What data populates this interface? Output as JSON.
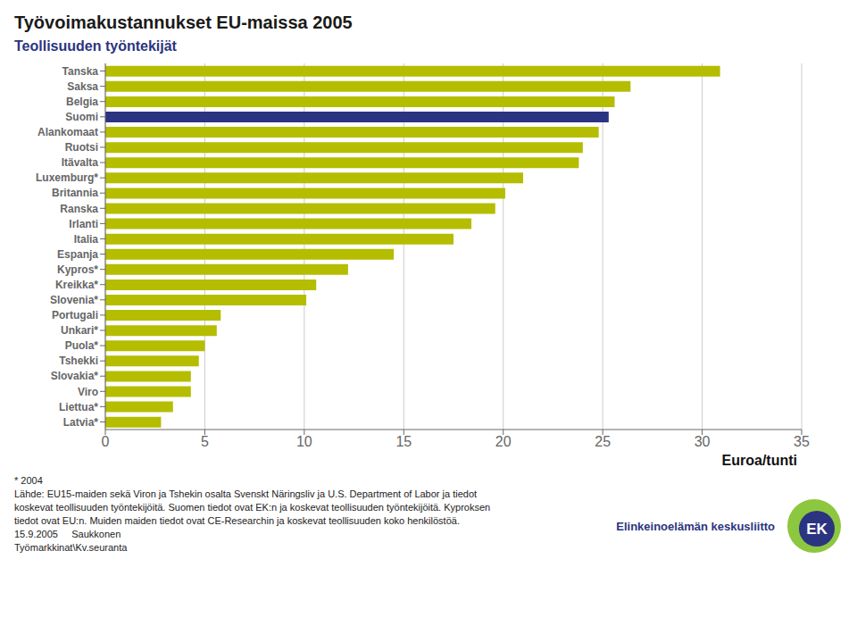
{
  "chart_data": {
    "type": "bar",
    "orientation": "horizontal",
    "title": "Työvoimakustannukset EU-maissa 2005",
    "subtitle": "Teollisuuden työntekijät",
    "xlabel": "Euroa/tunti",
    "categories": [
      "Tanska",
      "Saksa",
      "Belgia",
      "Suomi",
      "Alankomaat",
      "Ruotsi",
      "Itävalta",
      "Luxemburg*",
      "Britannia",
      "Ranska",
      "Irlanti",
      "Italia",
      "Espanja",
      "Kypros*",
      "Kreikka*",
      "Slovenia*",
      "Portugali",
      "Unkari*",
      "Puola*",
      "Tshekki",
      "Slovakia*",
      "Viro",
      "Liettua*",
      "Latvia*"
    ],
    "values": [
      30.9,
      26.4,
      25.6,
      25.3,
      24.8,
      24.0,
      23.8,
      21.0,
      20.1,
      19.6,
      18.4,
      17.5,
      14.5,
      12.2,
      10.6,
      10.1,
      5.8,
      5.6,
      5.0,
      4.7,
      4.3,
      4.3,
      3.4,
      2.8
    ],
    "colors": [
      "#b5bd00",
      "#b5bd00",
      "#b5bd00",
      "#2b3480",
      "#b5bd00",
      "#b5bd00",
      "#b5bd00",
      "#b5bd00",
      "#b5bd00",
      "#b5bd00",
      "#b5bd00",
      "#b5bd00",
      "#b5bd00",
      "#b5bd00",
      "#b5bd00",
      "#b5bd00",
      "#b5bd00",
      "#b5bd00",
      "#b5bd00",
      "#b5bd00",
      "#b5bd00",
      "#b5bd00",
      "#b5bd00",
      "#b5bd00"
    ],
    "xlim": [
      0,
      35
    ],
    "xticks": [
      0,
      5,
      10,
      15,
      20,
      25,
      30,
      35
    ],
    "grid": true,
    "annotations": [
      "* 2004",
      "Lähde: EU15-maiden sekä Viron ja Tshekin osalta Svenskt Näringsliv ja U.S. Department of Labor ja tiedot",
      "koskevat teollisuuden työntekijöitä. Suomen tiedot ovat EK:n ja koskevat teollisuuden työntekijöitä. Kyproksen",
      "tiedot ovat EU:n. Muiden maiden tiedot ovat CE-Researchin ja koskevat teollisuuden koko henkilöstöä.",
      "15.9.2005     Saukkonen",
      "Työmarkkinat\\Kv.seuranta",
      "Elinkeinoelämän keskusliitto",
      "EK"
    ]
  }
}
